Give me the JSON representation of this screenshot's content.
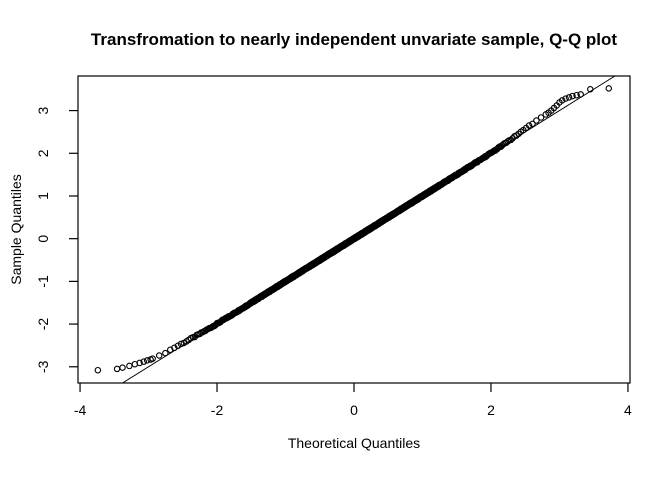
{
  "window": {
    "background": "#ffffff",
    "foreground": "#000000"
  },
  "chart_data": {
    "type": "scatter",
    "subtype": "normal-qq-plot",
    "title": "Transfromation to nearly independent unvariate sample, Q-Q plot",
    "xlabel": "Theoretical Quantiles",
    "ylabel": "Sample Quantiles",
    "xlim": [
      -4.03,
      4.03
    ],
    "ylim": [
      -3.38,
      3.81
    ],
    "x_ticks": [
      -4,
      -2,
      0,
      2,
      4
    ],
    "y_ticks": [
      -3,
      -2,
      -1,
      0,
      1,
      2,
      3
    ],
    "grid": false,
    "legend": null,
    "point_color": "#000000",
    "marker": {
      "shape": "open-circle",
      "radius_px": 2.7,
      "stroke_px": 1.1
    },
    "reference_line": {
      "slope": 1,
      "intercept": 0,
      "stroke_px": 1
    },
    "points": {
      "bulk": {
        "count": 1400,
        "p_range": [
          0.00187,
          0.9972
        ],
        "model": "sample_quantile = theoretical_quantile + tail_bumps + jitter",
        "tail_bumps": [
          {
            "amp": 0.1,
            "center": -2.97,
            "width": 0.35
          },
          {
            "amp": 0.13,
            "center": 2.97,
            "width": 0.35
          }
        ],
        "jitter_amp": 0.03
      },
      "lower_tail": [
        [
          -3.74,
          -3.08
        ],
        [
          -3.46,
          -3.05
        ],
        [
          -3.38,
          -3.02
        ],
        [
          -3.28,
          -2.98
        ],
        [
          -3.2,
          -2.94
        ],
        [
          -3.13,
          -2.91
        ],
        [
          -3.07,
          -2.88
        ],
        [
          -3.02,
          -2.85
        ],
        [
          -2.97,
          -2.83
        ],
        [
          -2.94,
          -2.81
        ]
      ],
      "upper_tail": [
        [
          2.8,
          2.91
        ],
        [
          2.84,
          2.95
        ],
        [
          2.88,
          3.0
        ],
        [
          2.92,
          3.06
        ],
        [
          2.96,
          3.12
        ],
        [
          3.0,
          3.19
        ],
        [
          3.04,
          3.24
        ],
        [
          3.09,
          3.28
        ],
        [
          3.14,
          3.31
        ],
        [
          3.19,
          3.34
        ],
        [
          3.25,
          3.36
        ],
        [
          3.31,
          3.38
        ],
        [
          3.45,
          3.5
        ],
        [
          3.72,
          3.52
        ]
      ]
    }
  }
}
